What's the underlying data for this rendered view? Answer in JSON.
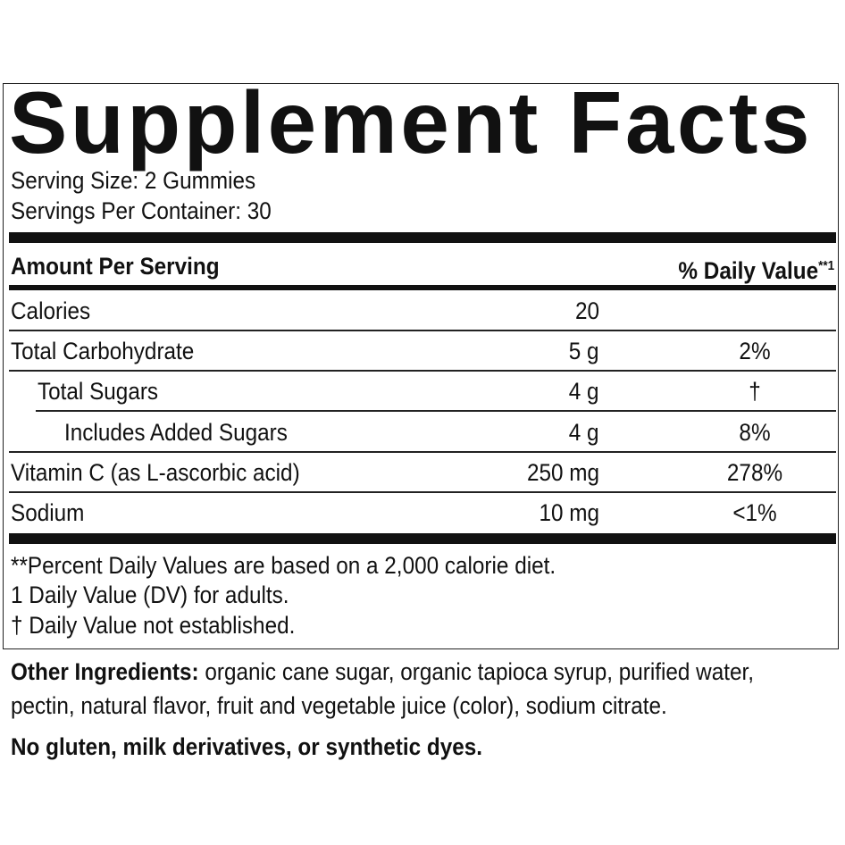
{
  "title": "Supplement Facts",
  "serving_size": "Serving Size: 2 Gummies",
  "servings_per_container": "Servings Per Container: 30",
  "header": {
    "amount": "Amount Per Serving",
    "dv": "% Daily Value",
    "dv_mark": "**1"
  },
  "rows": [
    {
      "name": "Calories",
      "amount": "20",
      "dv": ""
    },
    {
      "name": "Total Carbohydrate",
      "amount": "5 g",
      "dv": "2%"
    },
    {
      "name": "Total Sugars",
      "amount": "4 g",
      "dv": "†"
    },
    {
      "name": "Includes Added Sugars",
      "amount": "4 g",
      "dv": "8%"
    },
    {
      "name": "Vitamin C (as L-ascorbic acid)",
      "amount": "250 mg",
      "dv": "278%"
    },
    {
      "name": "Sodium",
      "amount": "10 mg",
      "dv": "<1%"
    }
  ],
  "footnotes": [
    "**Percent Daily Values are based on a 2,000 calorie diet.",
    "1 Daily Value (DV) for adults.",
    "† Daily Value not established."
  ],
  "other_ingredients": {
    "label": "Other Ingredients:",
    "line1": " organic cane sugar, organic tapioca syrup, purified water,",
    "line2": "pectin, natural flavor, fruit and vegetable juice (color), sodium citrate."
  },
  "free_from": "No gluten, milk derivatives, or synthetic dyes."
}
